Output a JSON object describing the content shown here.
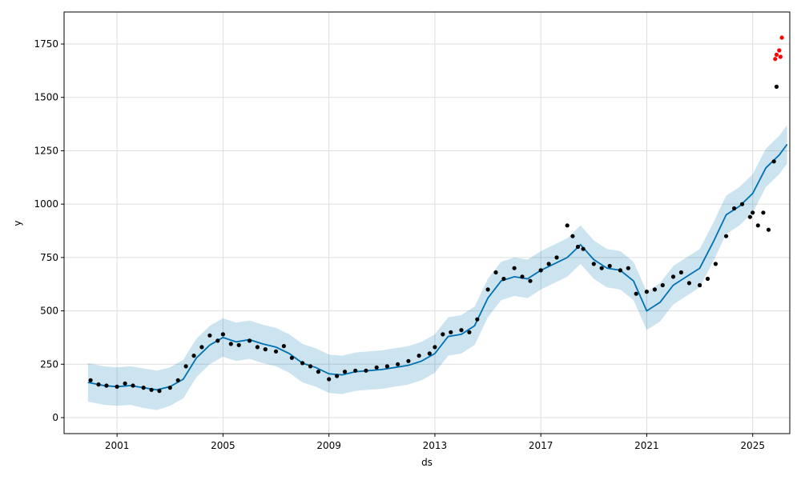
{
  "chart_data": {
    "type": "scatter",
    "title": "",
    "xlabel": "ds",
    "ylabel": "y",
    "xlim": [
      1999.0,
      2026.4
    ],
    "ylim": [
      -75,
      1900
    ],
    "xticks": [
      2001,
      2005,
      2009,
      2013,
      2017,
      2021,
      2025
    ],
    "xtick_labels": [
      "2001",
      "2005",
      "2009",
      "2013",
      "2017",
      "2021",
      "2025"
    ],
    "yticks": [
      0,
      250,
      500,
      750,
      1000,
      1250,
      1500,
      1750
    ],
    "ytick_labels": [
      "0",
      "250",
      "500",
      "750",
      "1000",
      "1250",
      "1500",
      "1750"
    ],
    "grid": true,
    "colors": {
      "observed": "#000000",
      "forecast_line": "#0072B2",
      "uncertainty_band": "#0072B2",
      "highlighted_points": "#ff0000"
    },
    "series": [
      {
        "role": "observed",
        "x": [
          2000.0,
          2000.3,
          2000.6,
          2001.0,
          2001.3,
          2001.6,
          2002.0,
          2002.3,
          2002.6,
          2003.0,
          2003.3,
          2003.6,
          2003.9,
          2004.2,
          2004.5,
          2004.8,
          2005.0,
          2005.3,
          2005.6,
          2006.0,
          2006.3,
          2006.6,
          2007.0,
          2007.3,
          2007.6,
          2008.0,
          2008.3,
          2008.6,
          2009.0,
          2009.3,
          2009.6,
          2010.0,
          2010.4,
          2010.8,
          2011.2,
          2011.6,
          2012.0,
          2012.4,
          2012.8,
          2013.0,
          2013.3,
          2013.6,
          2014.0,
          2014.3,
          2014.6,
          2015.0,
          2015.3,
          2015.6,
          2016.0,
          2016.3,
          2016.6,
          2017.0,
          2017.3,
          2017.6,
          2018.0,
          2018.2,
          2018.4,
          2018.6,
          2019.0,
          2019.3,
          2019.6,
          2020.0,
          2020.3,
          2020.6,
          2021.0,
          2021.3,
          2021.6,
          2022.0,
          2022.3,
          2022.6,
          2023.0,
          2023.3,
          2023.6,
          2024.0,
          2024.3,
          2024.6,
          2024.9,
          2025.0,
          2025.2,
          2025.4,
          2025.6,
          2025.8,
          2025.9
        ],
        "y": [
          175,
          155,
          150,
          145,
          160,
          150,
          140,
          130,
          125,
          140,
          175,
          240,
          290,
          330,
          385,
          360,
          390,
          345,
          340,
          360,
          330,
          320,
          310,
          335,
          280,
          255,
          240,
          215,
          180,
          195,
          215,
          220,
          220,
          235,
          240,
          250,
          265,
          290,
          300,
          330,
          390,
          400,
          410,
          400,
          460,
          600,
          680,
          650,
          700,
          660,
          640,
          690,
          720,
          750,
          900,
          850,
          800,
          790,
          720,
          700,
          710,
          690,
          700,
          580,
          590,
          600,
          620,
          660,
          680,
          630,
          620,
          650,
          720,
          850,
          980,
          1000,
          940,
          960,
          900,
          960,
          880,
          1200,
          1550
        ]
      },
      {
        "role": "highlighted",
        "x": [
          2025.85,
          2025.9,
          2026.0,
          2026.05,
          2026.1
        ],
        "y": [
          1680,
          1700,
          1720,
          1690,
          1780
        ]
      },
      {
        "role": "forecast",
        "x": [
          1999.9,
          2000.5,
          2001.0,
          2001.5,
          2002.0,
          2002.5,
          2003.0,
          2003.5,
          2004.0,
          2004.5,
          2005.0,
          2005.5,
          2006.0,
          2006.5,
          2007.0,
          2007.5,
          2008.0,
          2008.5,
          2009.0,
          2009.5,
          2010.0,
          2010.5,
          2011.0,
          2011.5,
          2012.0,
          2012.5,
          2013.0,
          2013.5,
          2014.0,
          2014.5,
          2015.0,
          2015.5,
          2016.0,
          2016.5,
          2017.0,
          2017.5,
          2018.0,
          2018.5,
          2019.0,
          2019.5,
          2020.0,
          2020.5,
          2021.0,
          2021.5,
          2022.0,
          2022.5,
          2023.0,
          2023.5,
          2024.0,
          2024.5,
          2025.0,
          2025.5,
          2026.0,
          2026.3
        ],
        "y": [
          165,
          150,
          145,
          150,
          140,
          130,
          145,
          180,
          280,
          340,
          375,
          355,
          365,
          345,
          330,
          300,
          255,
          235,
          205,
          200,
          215,
          220,
          225,
          235,
          245,
          265,
          300,
          380,
          390,
          430,
          560,
          640,
          660,
          650,
          690,
          720,
          750,
          810,
          740,
          700,
          690,
          640,
          500,
          540,
          620,
          660,
          700,
          820,
          950,
          990,
          1050,
          1170,
          1230,
          1280
        ]
      },
      {
        "role": "uncertainty",
        "x": [
          1999.9,
          2000.5,
          2001.0,
          2001.5,
          2002.0,
          2002.5,
          2003.0,
          2003.5,
          2004.0,
          2004.5,
          2005.0,
          2005.5,
          2006.0,
          2006.5,
          2007.0,
          2007.5,
          2008.0,
          2008.5,
          2009.0,
          2009.5,
          2010.0,
          2010.5,
          2011.0,
          2011.5,
          2012.0,
          2012.5,
          2013.0,
          2013.5,
          2014.0,
          2014.5,
          2015.0,
          2015.5,
          2016.0,
          2016.5,
          2017.0,
          2017.5,
          2018.0,
          2018.5,
          2019.0,
          2019.5,
          2020.0,
          2020.5,
          2021.0,
          2021.5,
          2022.0,
          2022.5,
          2023.0,
          2023.5,
          2024.0,
          2024.5,
          2025.0,
          2025.5,
          2026.0,
          2026.3
        ],
        "lower": [
          75,
          60,
          55,
          60,
          45,
          35,
          55,
          90,
          190,
          250,
          285,
          265,
          275,
          255,
          240,
          210,
          165,
          145,
          115,
          110,
          125,
          130,
          135,
          145,
          155,
          175,
          210,
          290,
          300,
          340,
          470,
          550,
          570,
          560,
          600,
          630,
          660,
          720,
          650,
          610,
          600,
          550,
          410,
          450,
          530,
          570,
          610,
          730,
          860,
          900,
          960,
          1080,
          1140,
          1190
        ],
        "upper": [
          255,
          240,
          235,
          240,
          230,
          220,
          235,
          270,
          370,
          430,
          465,
          445,
          455,
          435,
          420,
          390,
          345,
          325,
          295,
          290,
          305,
          310,
          315,
          325,
          335,
          355,
          390,
          470,
          480,
          520,
          650,
          730,
          750,
          740,
          780,
          810,
          840,
          900,
          830,
          790,
          780,
          730,
          590,
          630,
          710,
          750,
          790,
          910,
          1040,
          1080,
          1140,
          1260,
          1320,
          1370
        ]
      }
    ]
  }
}
